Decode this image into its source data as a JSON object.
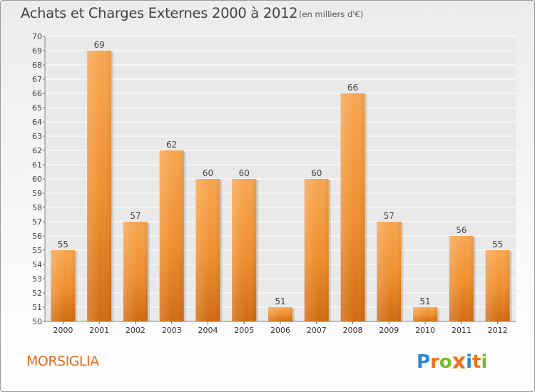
{
  "chart_data": {
    "type": "bar",
    "title": "Achats et Charges Externes 2000 à 2012",
    "subtitle": "(en milliers d'€)",
    "categories": [
      "2000",
      "2001",
      "2002",
      "2003",
      "2004",
      "2005",
      "2006",
      "2007",
      "2008",
      "2009",
      "2010",
      "2011",
      "2012"
    ],
    "values": [
      55,
      69,
      57,
      62,
      60,
      60,
      51,
      60,
      66,
      57,
      51,
      56,
      55
    ],
    "ylim": [
      50,
      70
    ],
    "yticks": [
      50,
      51,
      52,
      53,
      54,
      55,
      56,
      57,
      58,
      59,
      60,
      61,
      62,
      63,
      64,
      65,
      66,
      67,
      68,
      69,
      70
    ],
    "grid": true,
    "bar_color": "#f0902a"
  },
  "footer": {
    "commune": "MORSIGLIA",
    "logo_letters": [
      "P",
      "r",
      "o",
      "x",
      "i",
      "t",
      "i"
    ],
    "logo_colors": [
      "#2e89c9",
      "#e8731c",
      "#7cb82f",
      "#e8731c",
      "#2e89c9",
      "#e8731c",
      "#7cb82f"
    ]
  }
}
